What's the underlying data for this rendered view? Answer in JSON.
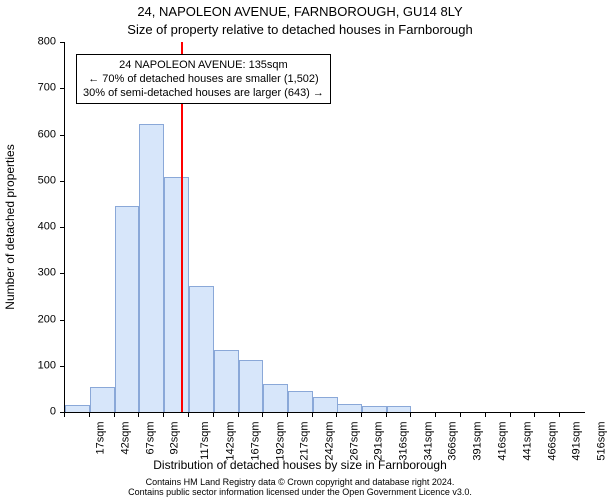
{
  "title": "24, NAPOLEON AVENUE, FARNBOROUGH, GU14 8LY",
  "subtitle": "Size of property relative to detached houses in Farnborough",
  "ylabel": "Number of detached properties",
  "xlabel": "Distribution of detached houses by size in Farnborough",
  "footer_line1": "Contains HM Land Registry data © Crown copyright and database right 2024.",
  "footer_line2": "Contains public sector information licensed under the Open Government Licence v3.0.",
  "chart": {
    "type": "histogram",
    "background_color": "#ffffff",
    "axis_color": "#000000",
    "bar_fill": "#d7e6fa",
    "bar_stroke": "#8aa8d8",
    "marker_color": "#ff0000",
    "marker_x_value": 135,
    "ylim": [
      0,
      800
    ],
    "ytick_step": 100,
    "yticks": [
      0,
      100,
      200,
      300,
      400,
      500,
      600,
      700,
      800
    ],
    "xtick_labels": [
      "17sqm",
      "42sqm",
      "67sqm",
      "92sqm",
      "117sqm",
      "142sqm",
      "167sqm",
      "192sqm",
      "217sqm",
      "242sqm",
      "267sqm",
      "291sqm",
      "316sqm",
      "341sqm",
      "366sqm",
      "391sqm",
      "416sqm",
      "441sqm",
      "466sqm",
      "491sqm",
      "516sqm"
    ],
    "xtick_values": [
      17,
      42,
      67,
      92,
      117,
      142,
      167,
      192,
      217,
      242,
      267,
      291,
      316,
      341,
      366,
      391,
      416,
      441,
      466,
      491,
      516
    ],
    "bin_width": 25,
    "bars": [
      {
        "x0": 17,
        "count": 15
      },
      {
        "x0": 42,
        "count": 55
      },
      {
        "x0": 67,
        "count": 445
      },
      {
        "x0": 92,
        "count": 622
      },
      {
        "x0": 117,
        "count": 508
      },
      {
        "x0": 142,
        "count": 273
      },
      {
        "x0": 167,
        "count": 135
      },
      {
        "x0": 192,
        "count": 113
      },
      {
        "x0": 217,
        "count": 60
      },
      {
        "x0": 242,
        "count": 45
      },
      {
        "x0": 267,
        "count": 32
      },
      {
        "x0": 291,
        "count": 18
      },
      {
        "x0": 316,
        "count": 12
      },
      {
        "x0": 341,
        "count": 12
      },
      {
        "x0": 366,
        "count": 0
      },
      {
        "x0": 391,
        "count": 0
      },
      {
        "x0": 416,
        "count": 0
      },
      {
        "x0": 441,
        "count": 0
      },
      {
        "x0": 466,
        "count": 0
      },
      {
        "x0": 491,
        "count": 0
      },
      {
        "x0": 516,
        "count": 0
      }
    ],
    "annotation": {
      "line1": "24 NAPOLEON AVENUE: 135sqm",
      "line2": "← 70% of detached houses are smaller (1,502)",
      "line3": "30% of semi-detached houses are larger (643) →"
    },
    "label_fontsize": 12,
    "tick_fontsize": 11,
    "title_fontsize": 13
  }
}
